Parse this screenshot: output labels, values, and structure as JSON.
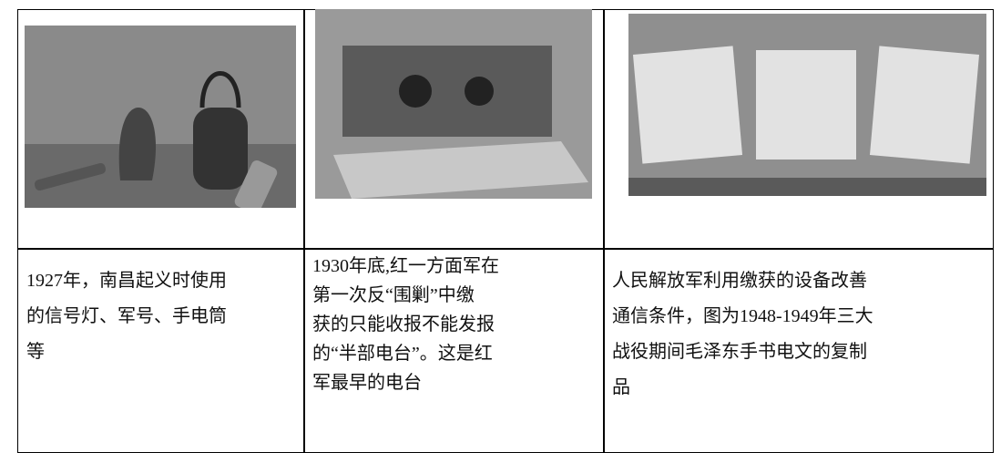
{
  "table": {
    "rows": [
      {
        "caption_lines": [
          "1927年，南昌起义时使用",
          "的信号灯、军号、手电筒",
          "等"
        ]
      },
      {
        "caption_lines": [
          "1930年底,红一方面军在",
          "第一次反“围剿”中缴",
          "获的只能收报不能发报",
          "的“半部电台”。这是红",
          "军最早的电台"
        ]
      },
      {
        "caption_lines": [
          "人民解放军利用缴获的设备改善",
          "通信条件，图为1948-1949年三大",
          "战役期间毛泽东手书电文的复制",
          "品"
        ]
      }
    ]
  }
}
